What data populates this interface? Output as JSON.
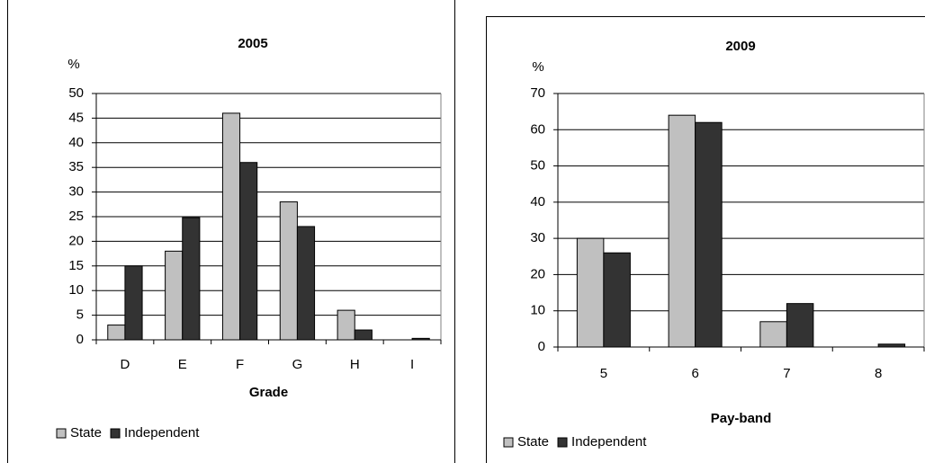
{
  "chart_data": [
    {
      "type": "bar",
      "title": "2005",
      "ylabel": "%",
      "xlabel": "Grade",
      "categories": [
        "D",
        "E",
        "F",
        "G",
        "H",
        "I"
      ],
      "series": [
        {
          "name": "State",
          "color": "#c0c0c0",
          "values": [
            3,
            18,
            46,
            28,
            6,
            0
          ]
        },
        {
          "name": "Independent",
          "color": "#333333",
          "values": [
            15,
            24.8,
            36,
            23,
            2,
            0.3
          ]
        }
      ],
      "ylim": [
        0,
        50
      ],
      "yticks": [
        0,
        5,
        10,
        15,
        20,
        25,
        30,
        35,
        40,
        45,
        50
      ],
      "grid": true,
      "legend": "bottom-left"
    },
    {
      "type": "bar",
      "title": "2009",
      "ylabel": "%",
      "xlabel": "Pay-band",
      "categories": [
        "5",
        "6",
        "7",
        "8"
      ],
      "series": [
        {
          "name": "State",
          "color": "#c0c0c0",
          "values": [
            30,
            64,
            7,
            0
          ]
        },
        {
          "name": "Independent",
          "color": "#333333",
          "values": [
            26,
            62,
            12,
            0.8
          ]
        }
      ],
      "ylim": [
        0,
        70
      ],
      "yticks": [
        0,
        10,
        20,
        30,
        40,
        50,
        60,
        70
      ],
      "grid": true,
      "legend": "bottom-left"
    }
  ]
}
